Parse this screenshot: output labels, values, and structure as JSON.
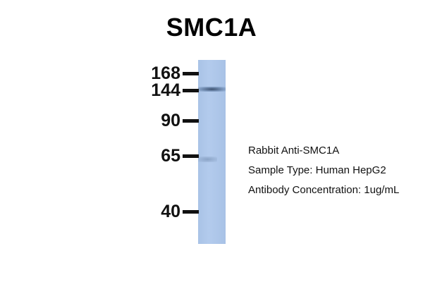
{
  "title": "SMC1A",
  "markers": [
    "168",
    "144",
    "90",
    "65",
    "40"
  ],
  "info": {
    "antibody": "Rabbit Anti-SMC1A",
    "sample": "Sample Type: Human HepG2",
    "concentration": "Antibody Concentration: 1ug/mL"
  },
  "colors": {
    "lane": "#afc8eb",
    "band": "#34496a"
  }
}
